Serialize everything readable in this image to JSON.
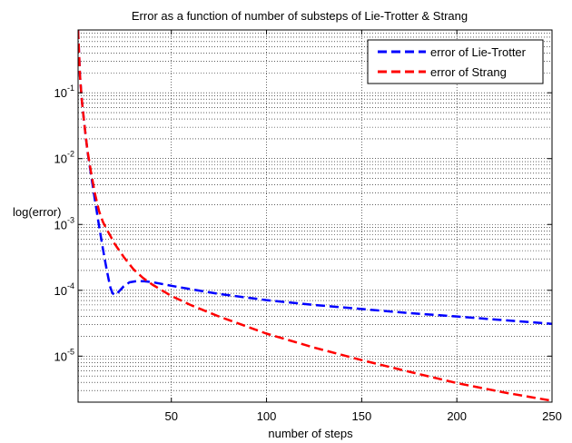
{
  "chart_data": {
    "type": "line",
    "title": "Error as a function of number of substeps of Lie-Trotter & Strang",
    "xlabel": "number of steps",
    "ylabel": "log(error)",
    "xlim": [
      1,
      250
    ],
    "ylim": [
      2e-06,
      0.9
    ],
    "yscale": "log",
    "grid": "y-major-and-minor",
    "legend_position": "top-right",
    "x_ticks": [
      50,
      100,
      150,
      200,
      250
    ],
    "y_ticks": [
      {
        "value": 1e-05,
        "base": "10",
        "exp": "-5"
      },
      {
        "value": 0.0001,
        "base": "10",
        "exp": "-4"
      },
      {
        "value": 0.001,
        "base": "10",
        "exp": "-3"
      },
      {
        "value": 0.01,
        "base": "10",
        "exp": "-2"
      },
      {
        "value": 0.1,
        "base": "10",
        "exp": "-1"
      }
    ],
    "series": [
      {
        "name": "error of Lie-Trotter",
        "color": "#0000ff",
        "style": "dashed",
        "x": [
          1,
          2,
          3,
          4,
          5,
          6,
          8,
          10,
          12,
          14,
          15,
          16,
          17,
          18,
          19,
          20,
          22,
          25,
          28,
          32,
          36,
          40,
          50,
          60,
          75,
          100,
          125,
          150,
          175,
          200,
          225,
          250
        ],
        "y": [
          0.9,
          0.18,
          0.075,
          0.04,
          0.022,
          0.0125,
          0.0052,
          0.0022,
          0.00095,
          0.00043,
          0.0003,
          0.00021,
          0.00015,
          0.00011,
          9.2e-05,
          8.5e-05,
          9.3e-05,
          0.000115,
          0.000132,
          0.000138,
          0.000137,
          0.000133,
          0.000117,
          0.000104,
          8.8e-05,
          7.1e-05,
          6e-05,
          5.2e-05,
          4.5e-05,
          4e-05,
          3.5e-05,
          3.1e-05
        ]
      },
      {
        "name": "error of Strang",
        "color": "#ff0000",
        "style": "dashed",
        "x": [
          1,
          2,
          3,
          4,
          5,
          6,
          8,
          10,
          12,
          14,
          16,
          18,
          20,
          25,
          30,
          35,
          40,
          50,
          60,
          75,
          100,
          125,
          150,
          175,
          200,
          225,
          250
        ],
        "y": [
          0.9,
          0.18,
          0.075,
          0.04,
          0.022,
          0.0128,
          0.0057,
          0.0028,
          0.0016,
          0.0011,
          0.00085,
          0.00067,
          0.00052,
          0.00032,
          0.00021,
          0.000155,
          0.000122,
          8.2e-05,
          6e-05,
          4e-05,
          2.2e-05,
          1.35e-05,
          8.7e-06,
          5.8e-06,
          3.9e-06,
          2.8e-06,
          2.1e-06
        ]
      }
    ]
  }
}
